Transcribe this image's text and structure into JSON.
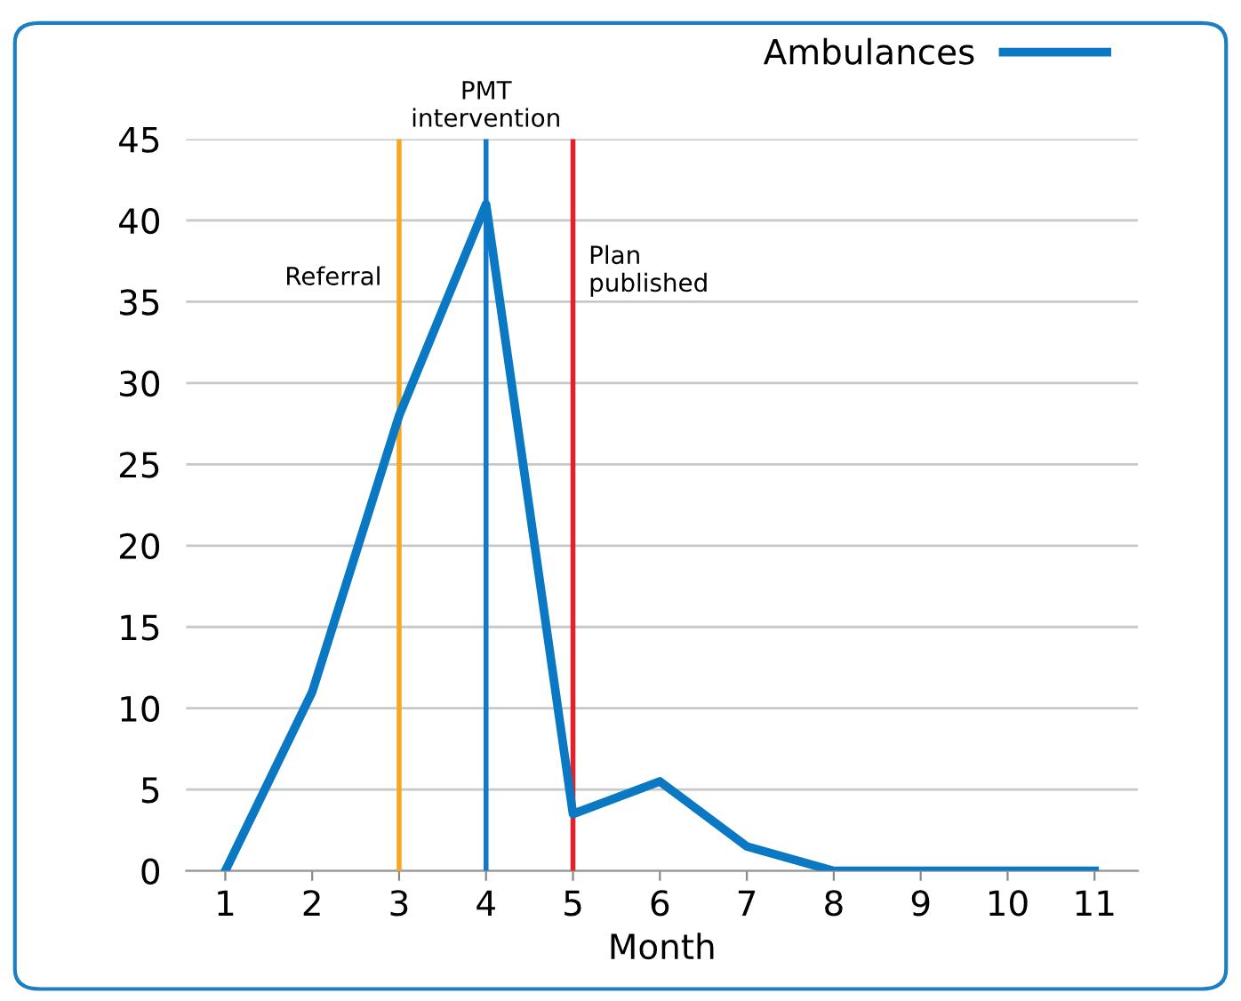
{
  "chart_data": {
    "type": "line",
    "xlabel": "Month",
    "x": [
      1,
      2,
      3,
      4,
      5,
      6,
      7,
      8,
      9,
      10,
      11
    ],
    "series": [
      {
        "name": "Ambulances",
        "color": "#0a78c2",
        "values": [
          0,
          11,
          28,
          41,
          3.5,
          5.5,
          1.5,
          0,
          0,
          0,
          0
        ]
      }
    ],
    "xlim": [
      0.55,
      11.5
    ],
    "xticks": [
      1,
      2,
      3,
      4,
      5,
      6,
      7,
      8,
      9,
      10,
      11
    ],
    "ylim": [
      0,
      45
    ],
    "yticks": [
      0,
      5,
      10,
      15,
      20,
      25,
      30,
      35,
      40,
      45
    ],
    "grid": "y",
    "legend": "top right",
    "marker": "none",
    "line_style": "solid",
    "ref_lines": [
      {
        "axis": "x",
        "value": 3,
        "label": "Referral",
        "color": "#f7a823"
      },
      {
        "axis": "x",
        "value": 4,
        "label": "PMT\nintervention",
        "color": "#1479c9"
      },
      {
        "axis": "x",
        "value": 5,
        "label": "Plan\npublished",
        "color": "#e3222b"
      }
    ]
  }
}
